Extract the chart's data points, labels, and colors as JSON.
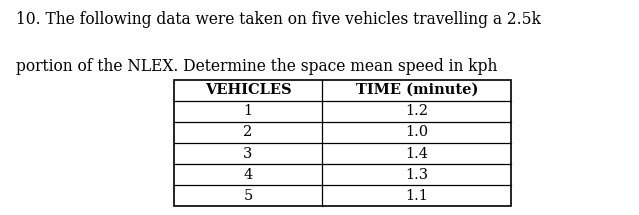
{
  "title_line1": "10. The following data were taken on five vehicles travelling a 2.5k",
  "title_line2": "portion of the NLEX. Determine the space mean speed in kph",
  "col_headers": [
    "VEHICLES",
    "TIME (minute)"
  ],
  "vehicles": [
    1,
    2,
    3,
    4,
    5
  ],
  "times": [
    1.2,
    1.0,
    1.4,
    1.3,
    1.1
  ],
  "bg_color": "#ffffff",
  "text_color": "#000000",
  "title_fontsize": 11.2,
  "header_fontsize": 10.5,
  "data_fontsize": 10.5
}
